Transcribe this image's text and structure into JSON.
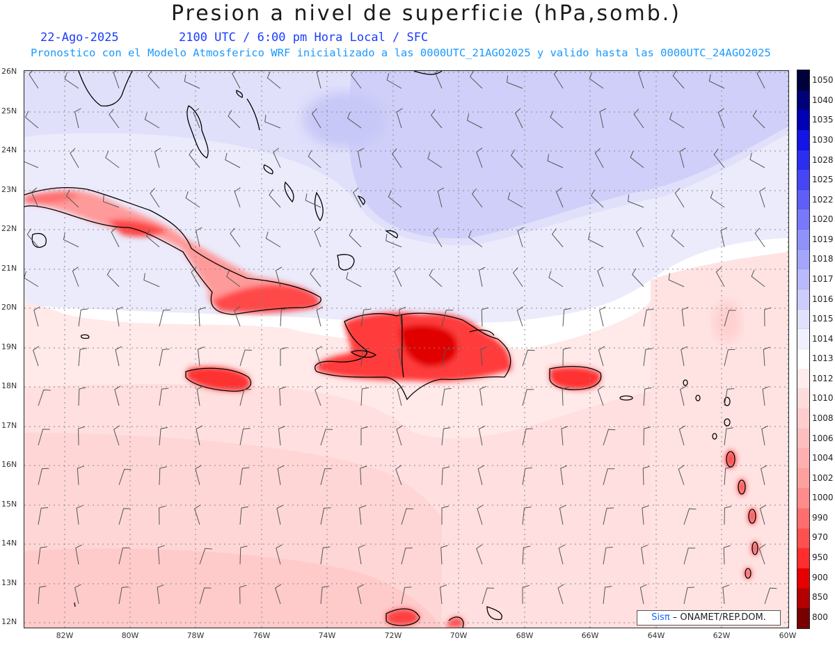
{
  "title": "Presion a nivel de superficie (hPa,somb.)",
  "date": "22-Ago-2025",
  "valid_time": "2100 UTC / 6:00 pm Hora Local / SFC",
  "model_line": "Pronostico con el Modelo Atmosferico WRF inicializado a las 0000UTC_21AGO2025 y valido hasta las  0000UTC_24AGO2025",
  "lat_labels": [
    "26N",
    "25N",
    "24N",
    "23N",
    "22N",
    "21N",
    "20N",
    "19N",
    "18N",
    "17N",
    "16N",
    "15N",
    "14N",
    "13N",
    "12N"
  ],
  "lon_labels": [
    "82W",
    "80W",
    "78W",
    "76W",
    "74W",
    "72W",
    "70W",
    "68W",
    "66W",
    "64W",
    "62W",
    "60W"
  ],
  "colorbar": {
    "labels": [
      "1050",
      "1040",
      "1035",
      "1030",
      "1028",
      "1025",
      "1022",
      "1020",
      "1019",
      "1018",
      "1017",
      "1016",
      "1015",
      "1014",
      "1013",
      "1012",
      "1010",
      "1008",
      "1006",
      "1004",
      "1002",
      "1000",
      "990",
      "970",
      "950",
      "900",
      "850",
      "800"
    ],
    "colors": [
      "#00003c",
      "#000078",
      "#0000b4",
      "#1414e6",
      "#2d2df0",
      "#4646f5",
      "#5f5ff8",
      "#7878fa",
      "#9191fb",
      "#a5a5fc",
      "#b9b9fd",
      "#cdcdfd",
      "#e1e1fe",
      "#f0f0ff",
      "#ffffff",
      "#ffecec",
      "#ffdcdc",
      "#ffcdcd",
      "#ffbebe",
      "#ffafaf",
      "#ffa0a0",
      "#ff8c8c",
      "#ff6e6e",
      "#ff5050",
      "#ff2d2d",
      "#e60000",
      "#b40000",
      "#780000"
    ]
  },
  "credit": {
    "brand": "Sisπ",
    "org": " – ONAMET/REP.DOM."
  }
}
